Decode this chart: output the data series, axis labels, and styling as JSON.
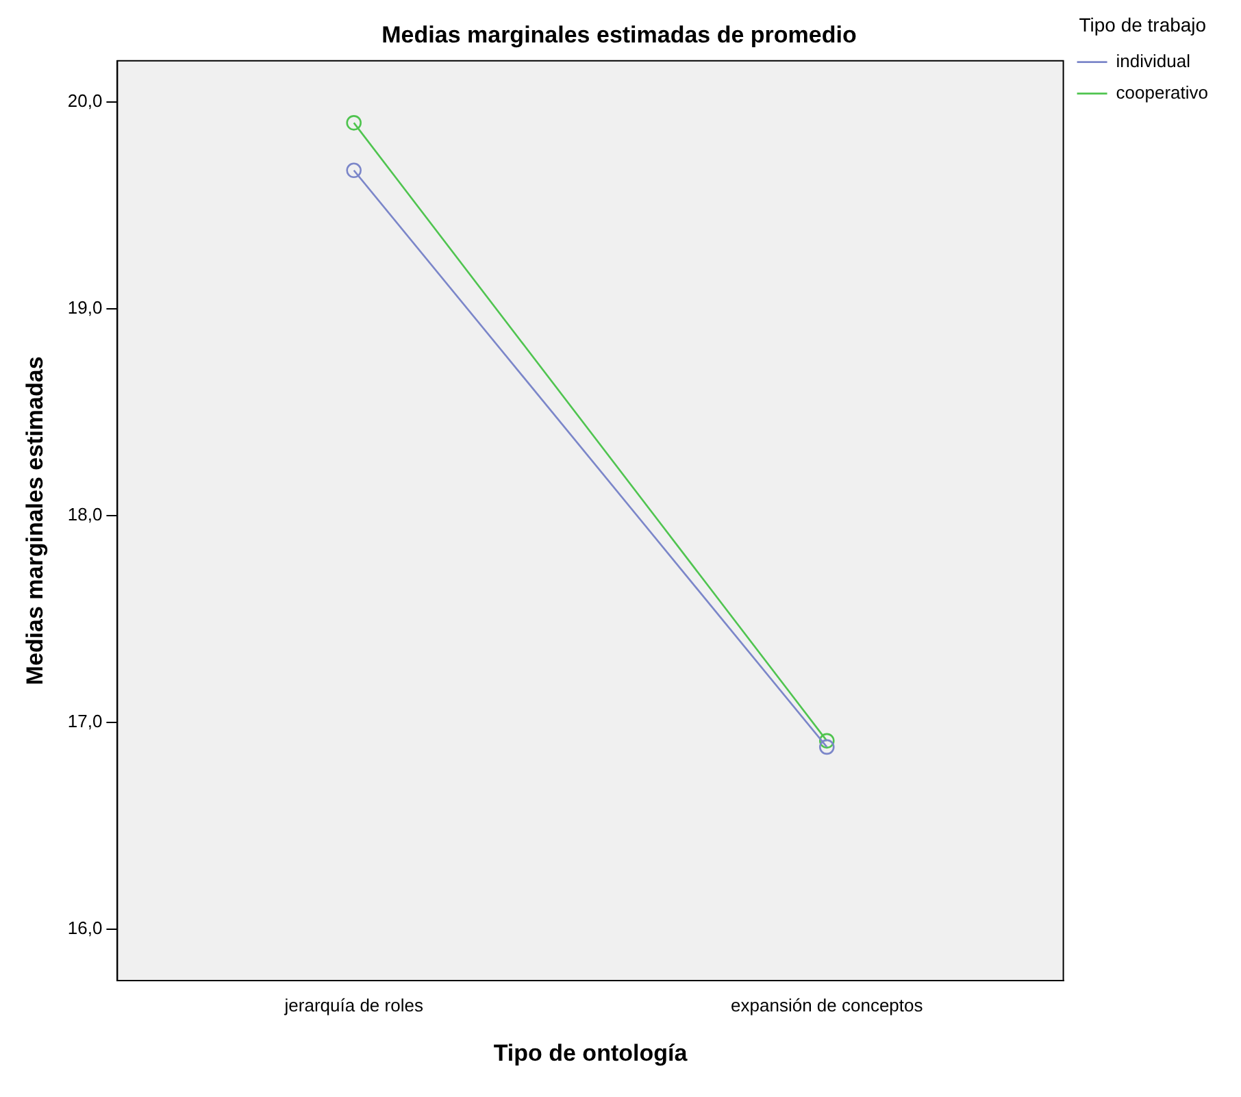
{
  "chart_data": {
    "type": "line",
    "title": "Medias marginales estimadas de promedio",
    "xlabel": "Tipo de ontología",
    "ylabel": "Medias marginales estimadas",
    "legend_title": "Tipo de trabajo",
    "categories": [
      "jerarquía de roles",
      "expansión de conceptos"
    ],
    "series": [
      {
        "name": "individual",
        "color": "#7b86c9",
        "values": [
          19.67,
          16.88
        ]
      },
      {
        "name": "cooperativo",
        "color": "#4fc44f",
        "values": [
          19.9,
          16.91
        ]
      }
    ],
    "ylim": [
      15.75,
      20.2
    ],
    "yticks": [
      {
        "value": 16,
        "label": "16,0"
      },
      {
        "value": 17,
        "label": "17,0"
      },
      {
        "value": 18,
        "label": "18,0"
      },
      {
        "value": 19,
        "label": "19,0"
      },
      {
        "value": 20,
        "label": "20,0"
      }
    ],
    "grid": false,
    "legend": "top right",
    "marker": "circle",
    "line_style": "solid"
  }
}
